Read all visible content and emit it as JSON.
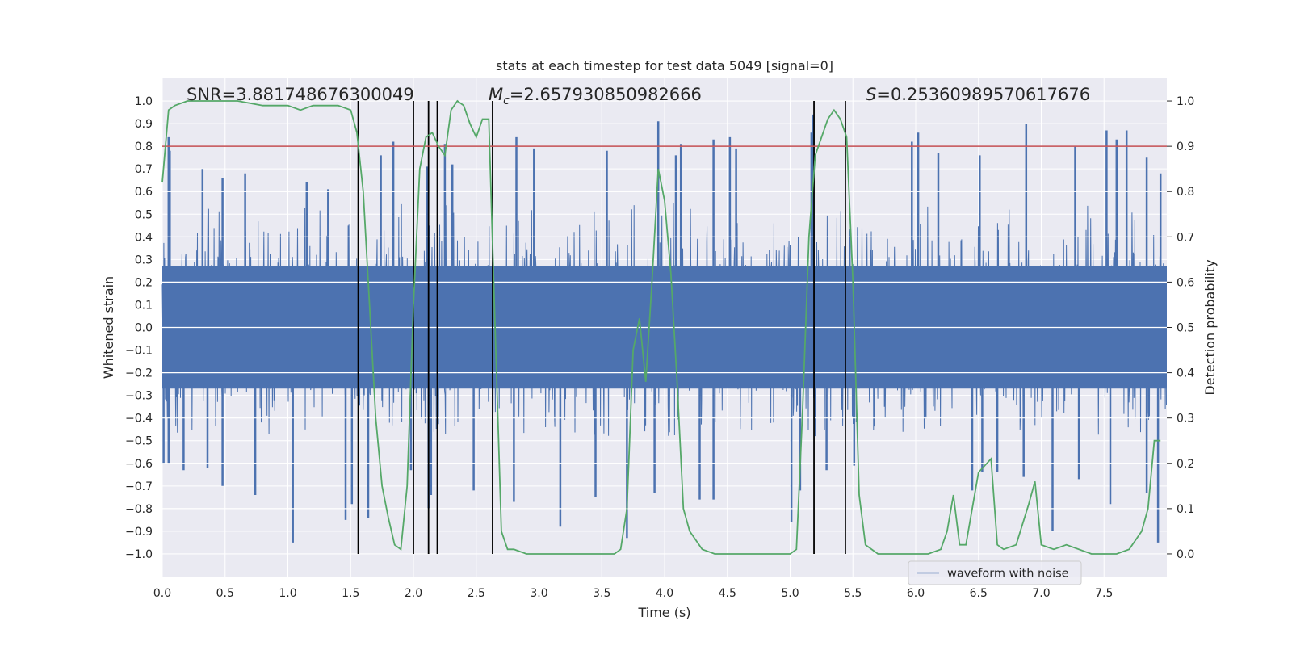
{
  "chart_data": {
    "type": "line",
    "title": "stats at each timestep for test data 5049 [signal=0]",
    "xlabel": "Time (s)",
    "ylabel": "Whitened strain",
    "y2label": "Detection probability",
    "xlim": [
      0.0,
      8.0
    ],
    "ylim": [
      -1.1,
      1.1
    ],
    "y2lim": [
      -0.05,
      1.05
    ],
    "xticks": [
      "0.0",
      "0.5",
      "1.0",
      "1.5",
      "2.0",
      "2.5",
      "3.0",
      "3.5",
      "4.0",
      "4.5",
      "5.0",
      "5.5",
      "6.0",
      "6.5",
      "7.0",
      "7.5"
    ],
    "yticks": [
      "1.0",
      "0.9",
      "0.8",
      "0.7",
      "0.6",
      "0.5",
      "0.4",
      "0.3",
      "0.2",
      "0.1",
      "0.0",
      "−0.1",
      "−0.2",
      "−0.3",
      "−0.4",
      "−0.5",
      "−0.6",
      "−0.7",
      "−0.8",
      "−0.9",
      "−1.0"
    ],
    "y2ticks": [
      "1.0",
      "0.9",
      "0.8",
      "0.7",
      "0.6",
      "0.5",
      "0.4",
      "0.3",
      "0.2",
      "0.1",
      "0.0"
    ],
    "legend": {
      "label": "waveform with noise",
      "placement": "lower-right"
    },
    "annotations": {
      "snr": "SNR=3.881748676300049",
      "mc_symbol": "M",
      "mc_sub": "c",
      "mc_value": "=2.657930850982666",
      "s_symbol": "S",
      "s_value": "=0.25360989570617676"
    },
    "threshold_line": {
      "y2": 0.9,
      "color": "#c44e52"
    },
    "vertical_lines": [
      1.56,
      2.0,
      2.12,
      2.19,
      2.63,
      5.19,
      5.44
    ],
    "waveform": {
      "name": "waveform with noise",
      "color": "#4c72b0",
      "duration": 8.0,
      "typical_max": 0.55,
      "typical_min": -0.48,
      "peaks": [
        [
          0.05,
          0.84
        ],
        [
          0.06,
          0.78
        ],
        [
          0.32,
          0.7
        ],
        [
          0.48,
          0.66
        ],
        [
          0.66,
          0.68
        ],
        [
          1.15,
          0.64
        ],
        [
          1.32,
          0.61
        ],
        [
          1.74,
          0.76
        ],
        [
          1.84,
          0.82
        ],
        [
          2.11,
          0.71
        ],
        [
          2.25,
          0.81
        ],
        [
          2.31,
          0.72
        ],
        [
          2.82,
          0.84
        ],
        [
          2.96,
          0.79
        ],
        [
          3.54,
          0.78
        ],
        [
          3.95,
          0.91
        ],
        [
          4.09,
          0.76
        ],
        [
          4.13,
          0.81
        ],
        [
          4.39,
          0.83
        ],
        [
          4.52,
          0.84
        ],
        [
          4.57,
          0.79
        ],
        [
          5.18,
          0.94
        ],
        [
          5.17,
          0.86
        ],
        [
          5.97,
          0.82
        ],
        [
          6.02,
          0.86
        ],
        [
          6.18,
          0.77
        ],
        [
          6.51,
          0.76
        ],
        [
          6.88,
          0.9
        ],
        [
          7.27,
          0.8
        ],
        [
          7.52,
          0.87
        ],
        [
          7.6,
          0.83
        ],
        [
          7.68,
          0.87
        ],
        [
          7.84,
          0.75
        ],
        [
          7.95,
          0.68
        ]
      ],
      "troughs": [
        [
          0.01,
          -0.6
        ],
        [
          0.05,
          -0.6
        ],
        [
          0.17,
          -0.63
        ],
        [
          0.36,
          -0.62
        ],
        [
          0.48,
          -0.7
        ],
        [
          0.74,
          -0.74
        ],
        [
          1.04,
          -0.95
        ],
        [
          1.46,
          -0.85
        ],
        [
          1.51,
          -0.78
        ],
        [
          1.64,
          -0.84
        ],
        [
          1.98,
          -0.63
        ],
        [
          2.12,
          -0.8
        ],
        [
          2.14,
          -0.74
        ],
        [
          2.48,
          -0.72
        ],
        [
          2.8,
          -0.77
        ],
        [
          3.17,
          -0.88
        ],
        [
          3.45,
          -0.75
        ],
        [
          3.7,
          -0.93
        ],
        [
          3.92,
          -0.73
        ],
        [
          4.28,
          -0.76
        ],
        [
          4.39,
          -0.76
        ],
        [
          5.01,
          -0.86
        ],
        [
          5.08,
          -0.72
        ],
        [
          5.29,
          -0.63
        ],
        [
          5.51,
          -0.61
        ],
        [
          6.45,
          -0.72
        ],
        [
          6.53,
          -0.64
        ],
        [
          6.65,
          -0.64
        ],
        [
          6.86,
          -0.66
        ],
        [
          7.09,
          -0.9
        ],
        [
          7.3,
          -0.67
        ],
        [
          7.55,
          -0.78
        ],
        [
          7.84,
          -0.73
        ],
        [
          7.93,
          -0.95
        ]
      ]
    },
    "detection_probability": {
      "name": "detection probability",
      "color": "#55a868",
      "x": [
        0.0,
        0.05,
        0.1,
        0.2,
        0.4,
        0.6,
        0.8,
        1.0,
        1.1,
        1.2,
        1.4,
        1.5,
        1.55,
        1.6,
        1.65,
        1.7,
        1.75,
        1.8,
        1.85,
        1.9,
        1.95,
        2.0,
        2.05,
        2.1,
        2.15,
        2.2,
        2.25,
        2.3,
        2.35,
        2.4,
        2.45,
        2.5,
        2.55,
        2.6,
        2.65,
        2.7,
        2.75,
        2.8,
        2.9,
        3.0,
        3.2,
        3.4,
        3.6,
        3.65,
        3.7,
        3.75,
        3.8,
        3.85,
        3.9,
        3.95,
        4.0,
        4.05,
        4.1,
        4.15,
        4.2,
        4.3,
        4.4,
        4.5,
        4.7,
        4.9,
        5.0,
        5.05,
        5.1,
        5.15,
        5.2,
        5.25,
        5.3,
        5.35,
        5.4,
        5.45,
        5.5,
        5.55,
        5.6,
        5.7,
        5.9,
        6.1,
        6.2,
        6.25,
        6.3,
        6.35,
        6.4,
        6.5,
        6.6,
        6.65,
        6.7,
        6.8,
        6.9,
        6.95,
        7.0,
        7.1,
        7.2,
        7.4,
        7.6,
        7.7,
        7.8,
        7.85,
        7.9,
        7.95
      ],
      "y": [
        0.82,
        0.98,
        0.99,
        1.0,
        1.0,
        1.0,
        0.99,
        0.99,
        0.98,
        0.99,
        0.99,
        0.98,
        0.93,
        0.8,
        0.55,
        0.3,
        0.15,
        0.08,
        0.02,
        0.01,
        0.15,
        0.55,
        0.85,
        0.92,
        0.93,
        0.9,
        0.88,
        0.98,
        1.0,
        0.99,
        0.95,
        0.92,
        0.96,
        0.96,
        0.5,
        0.05,
        0.01,
        0.01,
        0.0,
        0.0,
        0.0,
        0.0,
        0.0,
        0.01,
        0.1,
        0.45,
        0.52,
        0.38,
        0.6,
        0.85,
        0.78,
        0.62,
        0.38,
        0.1,
        0.05,
        0.01,
        0.0,
        0.0,
        0.0,
        0.0,
        0.0,
        0.01,
        0.32,
        0.7,
        0.88,
        0.92,
        0.96,
        0.98,
        0.96,
        0.92,
        0.6,
        0.13,
        0.02,
        0.0,
        0.0,
        0.0,
        0.01,
        0.05,
        0.13,
        0.02,
        0.02,
        0.18,
        0.21,
        0.02,
        0.01,
        0.02,
        0.11,
        0.16,
        0.02,
        0.01,
        0.02,
        0.0,
        0.0,
        0.01,
        0.05,
        0.1,
        0.25,
        0.25
      ]
    }
  }
}
